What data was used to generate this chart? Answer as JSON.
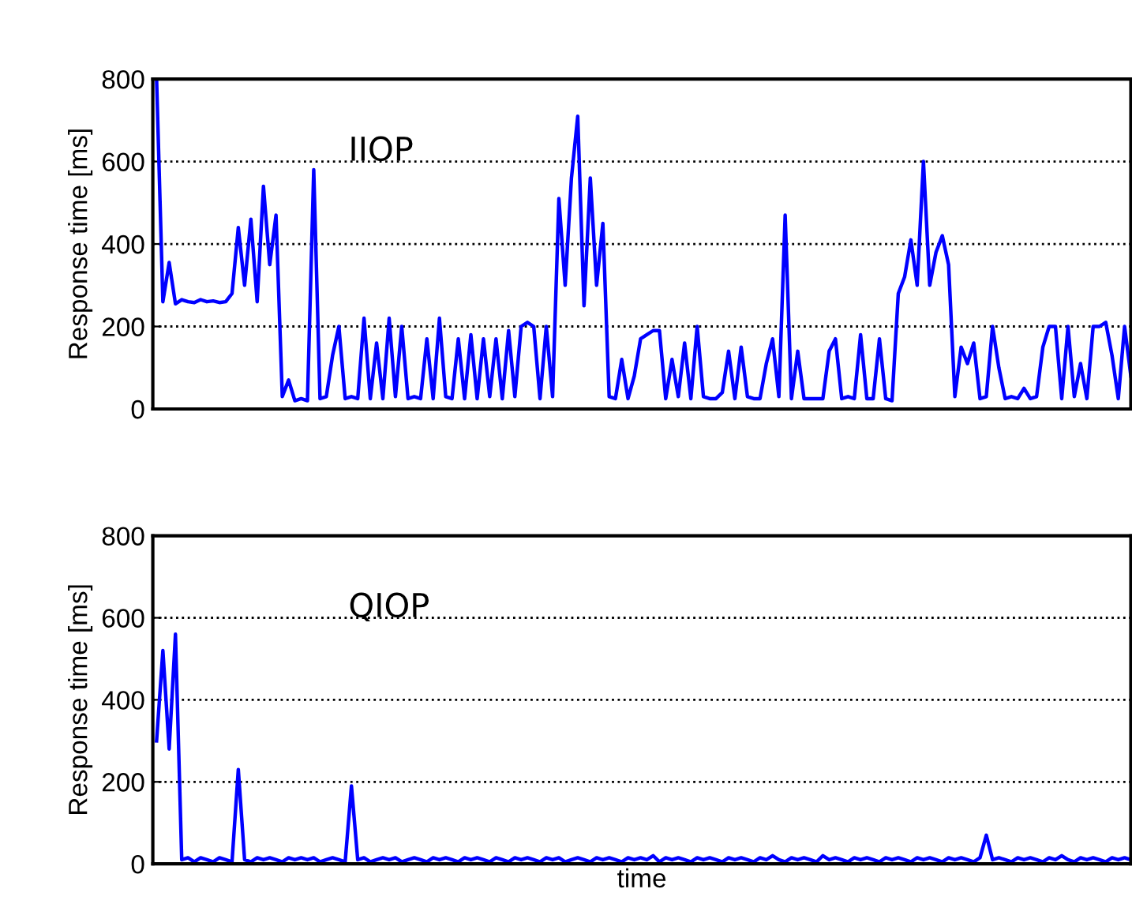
{
  "chart_data": [
    {
      "type": "line",
      "ylabel": "Response time [ms]",
      "annotations": [
        "IIOP"
      ],
      "categories": [
        null,
        null,
        null,
        null,
        null,
        null,
        null,
        null,
        null,
        null,
        null,
        null,
        null,
        null,
        null,
        null,
        null,
        null,
        null,
        null,
        null,
        null,
        null,
        null,
        null,
        null,
        null,
        null,
        null,
        null,
        null,
        null,
        null,
        null,
        null,
        null,
        null,
        null,
        null,
        null,
        null,
        null,
        null,
        null,
        null,
        null,
        null,
        null,
        null,
        null,
        null,
        null,
        null,
        null,
        null,
        null,
        null,
        null,
        null,
        null,
        null,
        null,
        null,
        null,
        null,
        null,
        null,
        null,
        null,
        null,
        null,
        null,
        null,
        null,
        null,
        null,
        null,
        null,
        null,
        null,
        null,
        null,
        null,
        null,
        null,
        null,
        null,
        null,
        null,
        null,
        null,
        null,
        null,
        null,
        null,
        null,
        null,
        null,
        null,
        null,
        null,
        null,
        null,
        null,
        null,
        null,
        null,
        null,
        null,
        null,
        null,
        null,
        null,
        null,
        null,
        null,
        null,
        null,
        null,
        null,
        null,
        null,
        null,
        null,
        null,
        null,
        null,
        null,
        null,
        null,
        null,
        null,
        null,
        null,
        null,
        null,
        null,
        null,
        null,
        null,
        null,
        null,
        null,
        null,
        null,
        null,
        null,
        null,
        null,
        null,
        null,
        null,
        null,
        null,
        null,
        null
      ],
      "series": [
        {
          "color": "#0000ff",
          "values": [
            800,
            260,
            355,
            255,
            265,
            260,
            258,
            265,
            260,
            262,
            258,
            260,
            280,
            440,
            300,
            460,
            260,
            540,
            350,
            470,
            30,
            70,
            20,
            25,
            20,
            580,
            25,
            30,
            130,
            200,
            25,
            30,
            25,
            220,
            25,
            160,
            25,
            220,
            30,
            200,
            25,
            30,
            25,
            170,
            25,
            220,
            30,
            25,
            170,
            25,
            180,
            25,
            170,
            30,
            170,
            25,
            190,
            30,
            200,
            210,
            200,
            25,
            200,
            30,
            510,
            300,
            560,
            710,
            250,
            560,
            300,
            450,
            30,
            25,
            120,
            25,
            80,
            170,
            180,
            190,
            190,
            25,
            120,
            30,
            160,
            25,
            200,
            30,
            25,
            25,
            40,
            140,
            25,
            150,
            30,
            25,
            25,
            110,
            170,
            30,
            470,
            25,
            140,
            25,
            25,
            25,
            25,
            140,
            170,
            25,
            30,
            25,
            180,
            25,
            25,
            170,
            25,
            20,
            280,
            320,
            410,
            300,
            600,
            300,
            380,
            420,
            350,
            30,
            150,
            110,
            160,
            25,
            30,
            200,
            100,
            25,
            30,
            25,
            50,
            25,
            30,
            150,
            200,
            200,
            25,
            200,
            30,
            110,
            25,
            200,
            200,
            210,
            130,
            25,
            200,
            80
          ]
        }
      ],
      "ylim": [
        0,
        800
      ],
      "yticks": [
        0,
        200,
        400,
        600,
        800
      ],
      "grid": "y",
      "tick_labels": "y",
      "line_style": "solid",
      "marker": "none"
    },
    {
      "type": "line",
      "ylabel": "Response time [ms]",
      "xlabel": "time",
      "annotations": [
        "QIOP"
      ],
      "categories": [
        null,
        null,
        null,
        null,
        null,
        null,
        null,
        null,
        null,
        null,
        null,
        null,
        null,
        null,
        null,
        null,
        null,
        null,
        null,
        null,
        null,
        null,
        null,
        null,
        null,
        null,
        null,
        null,
        null,
        null,
        null,
        null,
        null,
        null,
        null,
        null,
        null,
        null,
        null,
        null,
        null,
        null,
        null,
        null,
        null,
        null,
        null,
        null,
        null,
        null,
        null,
        null,
        null,
        null,
        null,
        null,
        null,
        null,
        null,
        null,
        null,
        null,
        null,
        null,
        null,
        null,
        null,
        null,
        null,
        null,
        null,
        null,
        null,
        null,
        null,
        null,
        null,
        null,
        null,
        null,
        null,
        null,
        null,
        null,
        null,
        null,
        null,
        null,
        null,
        null,
        null,
        null,
        null,
        null,
        null,
        null,
        null,
        null,
        null,
        null,
        null,
        null,
        null,
        null,
        null,
        null,
        null,
        null,
        null,
        null,
        null,
        null,
        null,
        null,
        null,
        null,
        null,
        null,
        null,
        null,
        null,
        null,
        null,
        null,
        null,
        null,
        null,
        null,
        null,
        null,
        null,
        null,
        null,
        null,
        null,
        null,
        null,
        null,
        null,
        null,
        null,
        null,
        null,
        null,
        null,
        null,
        null,
        null,
        null,
        null,
        null,
        null,
        null,
        null,
        null,
        null
      ],
      "series": [
        {
          "color": "#0000ff",
          "values": [
            300,
            520,
            280,
            560,
            10,
            15,
            5,
            15,
            10,
            5,
            15,
            10,
            5,
            230,
            10,
            5,
            15,
            10,
            15,
            10,
            5,
            15,
            10,
            15,
            10,
            15,
            5,
            10,
            15,
            10,
            5,
            190,
            10,
            15,
            5,
            10,
            15,
            10,
            15,
            5,
            10,
            15,
            10,
            5,
            15,
            10,
            15,
            10,
            5,
            15,
            10,
            15,
            10,
            5,
            15,
            10,
            5,
            15,
            10,
            15,
            10,
            5,
            15,
            10,
            15,
            5,
            10,
            15,
            10,
            5,
            15,
            10,
            15,
            10,
            5,
            15,
            10,
            15,
            10,
            20,
            5,
            15,
            10,
            15,
            10,
            5,
            15,
            10,
            15,
            10,
            5,
            15,
            10,
            15,
            10,
            5,
            15,
            10,
            20,
            10,
            5,
            15,
            10,
            15,
            10,
            5,
            20,
            10,
            15,
            10,
            5,
            15,
            10,
            15,
            10,
            5,
            15,
            10,
            15,
            10,
            5,
            15,
            10,
            15,
            10,
            5,
            15,
            10,
            15,
            10,
            5,
            15,
            70,
            10,
            15,
            10,
            5,
            15,
            10,
            15,
            10,
            5,
            15,
            10,
            20,
            10,
            5,
            15,
            10,
            15,
            10,
            5,
            15,
            10,
            15,
            10
          ]
        }
      ],
      "ylim": [
        0,
        800
      ],
      "yticks": [
        0,
        200,
        400,
        600,
        800
      ],
      "grid": "y",
      "tick_labels": "y",
      "line_style": "solid",
      "marker": "none"
    }
  ]
}
